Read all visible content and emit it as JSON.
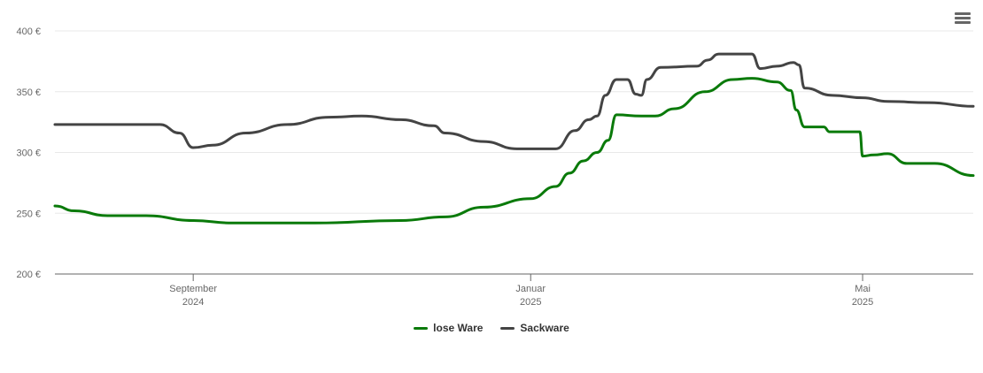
{
  "menu": {
    "icon": "hamburger-menu-icon"
  },
  "chart_data": {
    "type": "line",
    "title": "",
    "xlabel": "",
    "ylabel": "",
    "ylim": [
      200,
      400
    ],
    "y_ticks": [
      "200 €",
      "250 €",
      "300 €",
      "350 €",
      "400 €"
    ],
    "y_tick_values": [
      200,
      250,
      300,
      350,
      400
    ],
    "x_range": [
      "2024-07-13",
      "2025-06-10"
    ],
    "x_ticks": [
      {
        "date": "2024-09-01",
        "month": "September",
        "year": "2024"
      },
      {
        "date": "2025-01-01",
        "month": "Januar",
        "year": "2025"
      },
      {
        "date": "2025-05-01",
        "month": "Mai",
        "year": "2025"
      }
    ],
    "grid": true,
    "legend_position": "bottom-center",
    "series": [
      {
        "name": "lose Ware",
        "color": "#0a7a0a",
        "points": [
          [
            "2024-07-13",
            256
          ],
          [
            "2024-07-20",
            252
          ],
          [
            "2024-08-01",
            248
          ],
          [
            "2024-08-15",
            248
          ],
          [
            "2024-09-01",
            244
          ],
          [
            "2024-09-15",
            242
          ],
          [
            "2024-10-15",
            242
          ],
          [
            "2024-11-15",
            244
          ],
          [
            "2024-12-01",
            247
          ],
          [
            "2024-12-15",
            255
          ],
          [
            "2025-01-01",
            262
          ],
          [
            "2025-01-10",
            272
          ],
          [
            "2025-01-15",
            283
          ],
          [
            "2025-01-20",
            293
          ],
          [
            "2025-01-25",
            300
          ],
          [
            "2025-01-29",
            310
          ],
          [
            "2025-02-01",
            331
          ],
          [
            "2025-02-10",
            330
          ],
          [
            "2025-02-15",
            330
          ],
          [
            "2025-02-22",
            336
          ],
          [
            "2025-03-05",
            350
          ],
          [
            "2025-03-15",
            360
          ],
          [
            "2025-03-22",
            361
          ],
          [
            "2025-03-31",
            358
          ],
          [
            "2025-04-05",
            351
          ],
          [
            "2025-04-07",
            335
          ],
          [
            "2025-04-10",
            321
          ],
          [
            "2025-04-15",
            321
          ],
          [
            "2025-04-17",
            321
          ],
          [
            "2025-04-19",
            317
          ],
          [
            "2025-04-30",
            317
          ],
          [
            "2025-05-01",
            297
          ],
          [
            "2025-05-05",
            298
          ],
          [
            "2025-05-10",
            299
          ],
          [
            "2025-05-17",
            291
          ],
          [
            "2025-05-27",
            291
          ],
          [
            "2025-06-10",
            281
          ]
        ]
      },
      {
        "name": "Sackware",
        "color": "#444444",
        "points": [
          [
            "2024-07-13",
            323
          ],
          [
            "2024-08-01",
            323
          ],
          [
            "2024-08-20",
            323
          ],
          [
            "2024-08-27",
            316
          ],
          [
            "2024-09-01",
            304
          ],
          [
            "2024-09-08",
            306
          ],
          [
            "2024-09-20",
            316
          ],
          [
            "2024-10-05",
            323
          ],
          [
            "2024-10-20",
            329
          ],
          [
            "2024-11-01",
            330
          ],
          [
            "2024-11-15",
            327
          ],
          [
            "2024-11-27",
            322
          ],
          [
            "2024-12-01",
            316
          ],
          [
            "2024-12-15",
            309
          ],
          [
            "2024-12-27",
            303
          ],
          [
            "2025-01-10",
            303
          ],
          [
            "2025-01-17",
            318
          ],
          [
            "2025-01-22",
            327
          ],
          [
            "2025-01-25",
            330
          ],
          [
            "2025-01-28",
            347
          ],
          [
            "2025-02-01",
            360
          ],
          [
            "2025-02-05",
            360
          ],
          [
            "2025-02-08",
            348
          ],
          [
            "2025-02-10",
            347
          ],
          [
            "2025-02-12",
            360
          ],
          [
            "2025-02-17",
            370
          ],
          [
            "2025-03-02",
            371
          ],
          [
            "2025-03-06",
            376
          ],
          [
            "2025-03-10",
            381
          ],
          [
            "2025-03-22",
            381
          ],
          [
            "2025-03-25",
            369
          ],
          [
            "2025-03-31",
            371
          ],
          [
            "2025-04-06",
            374
          ],
          [
            "2025-04-08",
            372
          ],
          [
            "2025-04-10",
            353
          ],
          [
            "2025-04-20",
            347
          ],
          [
            "2025-05-01",
            345
          ],
          [
            "2025-05-10",
            342
          ],
          [
            "2025-05-25",
            341
          ],
          [
            "2025-06-10",
            338
          ]
        ]
      }
    ]
  }
}
